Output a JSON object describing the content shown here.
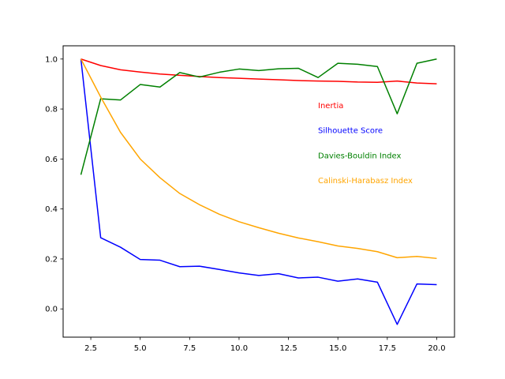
{
  "chart_data": {
    "type": "line",
    "title": "",
    "xlabel": "",
    "ylabel": "",
    "xlim": [
      1.1,
      20.9
    ],
    "ylim": [
      -0.113,
      1.053
    ],
    "x": [
      2,
      3,
      4,
      5,
      6,
      7,
      8,
      9,
      10,
      11,
      12,
      13,
      14,
      15,
      16,
      17,
      18,
      19,
      20
    ],
    "xticks": [
      2.5,
      5.0,
      7.5,
      10.0,
      12.5,
      15.0,
      17.5,
      20.0
    ],
    "xtick_labels": [
      "2.5",
      "5.0",
      "7.5",
      "10.0",
      "12.5",
      "15.0",
      "17.5",
      "20.0"
    ],
    "yticks": [
      0.0,
      0.2,
      0.4,
      0.6,
      0.8,
      1.0
    ],
    "ytick_labels": [
      "0.0",
      "0.2",
      "0.4",
      "0.6",
      "0.8",
      "1.0"
    ],
    "grid": false,
    "legend_placement": "right",
    "series": [
      {
        "name": "Inertia",
        "color": "#ff0000",
        "values": [
          1.0,
          0.974,
          0.957,
          0.948,
          0.94,
          0.935,
          0.93,
          0.926,
          0.923,
          0.92,
          0.917,
          0.914,
          0.912,
          0.911,
          0.908,
          0.907,
          0.912,
          0.904,
          0.901
        ]
      },
      {
        "name": "Silhouette Score",
        "color": "#0000ff",
        "values": [
          1.0,
          0.285,
          0.247,
          0.198,
          0.195,
          0.169,
          0.171,
          0.158,
          0.144,
          0.134,
          0.141,
          0.124,
          0.127,
          0.111,
          0.12,
          0.107,
          -0.062,
          0.1,
          0.097
        ]
      },
      {
        "name": "Davies-Bouldin Index",
        "color": "#008000",
        "values": [
          0.537,
          0.841,
          0.836,
          0.898,
          0.888,
          0.946,
          0.928,
          0.947,
          0.96,
          0.954,
          0.961,
          0.963,
          0.926,
          0.983,
          0.979,
          0.97,
          0.781,
          0.983,
          1.0
        ]
      },
      {
        "name": "Calinski-Harabasz Index",
        "color": "#ffa500",
        "values": [
          1.0,
          0.848,
          0.707,
          0.6,
          0.525,
          0.462,
          0.417,
          0.379,
          0.349,
          0.325,
          0.303,
          0.284,
          0.269,
          0.252,
          0.242,
          0.229,
          0.205,
          0.21,
          0.202
        ]
      }
    ]
  }
}
